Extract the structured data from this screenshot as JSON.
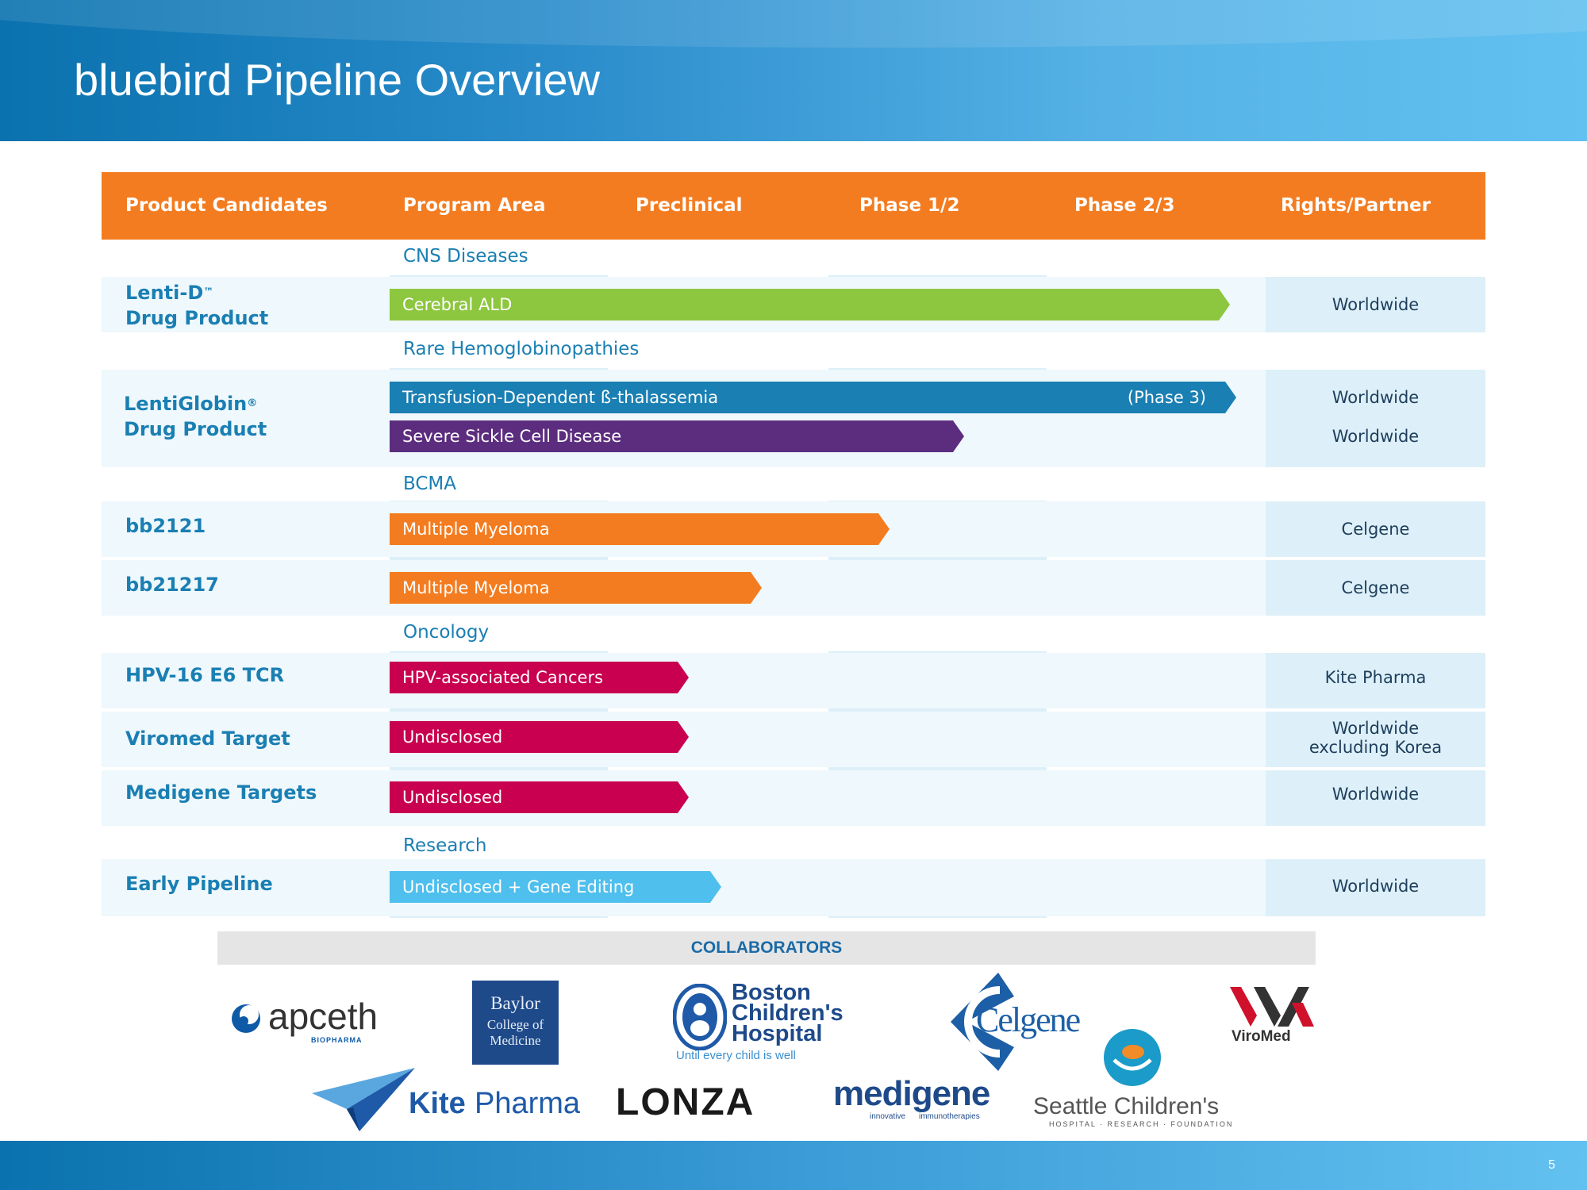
{
  "slide": {
    "title": "bluebird Pipeline Overview",
    "page_number": "5"
  },
  "table": {
    "headers": [
      "Product Candidates",
      "Program Area",
      "Preclinical",
      "Phase 1/2",
      "Phase 2/3",
      "Rights/Partner"
    ],
    "groups": [
      {
        "name": "CNS Diseases"
      },
      {
        "name": "Rare Hemoglobinopathies"
      },
      {
        "name": "BCMA"
      },
      {
        "name": "Oncology"
      },
      {
        "name": "Research"
      }
    ],
    "products": [
      {
        "name_line1": "Lenti-D",
        "name_mark": "™",
        "name_line2": "Drug Product",
        "programs": [
          {
            "program": "Cerebral ALD",
            "stage_end": 0.98,
            "color": "#8dc63f",
            "note": "",
            "rights": "Worldwide"
          }
        ]
      },
      {
        "name_line1": "LentiGlobin",
        "name_mark": "®",
        "name_line2": "Drug Product",
        "programs": [
          {
            "program": "Transfusion-Dependent ß-thalassemia",
            "stage_end": 1.0,
            "color": "#1a7fb3",
            "note": "(Phase 3)",
            "rights": "Worldwide"
          },
          {
            "program": "Severe Sickle Cell Disease",
            "stage_end": 0.65,
            "color": "#5c2d7e",
            "note": "",
            "rights": "Worldwide"
          }
        ]
      },
      {
        "name_line1": "bb2121",
        "programs": [
          {
            "program": "Multiple Myeloma",
            "stage_end": 0.57,
            "color": "#f47c20",
            "note": "",
            "rights": "Celgene"
          }
        ]
      },
      {
        "name_line1": "bb21217",
        "programs": [
          {
            "program": "Multiple Myeloma",
            "stage_end": 0.42,
            "color": "#f47c20",
            "note": "",
            "rights": "Celgene"
          }
        ]
      },
      {
        "name_line1": "HPV-16 E6 TCR",
        "programs": [
          {
            "program": "HPV-associated Cancers",
            "stage_end": 0.35,
            "color": "#c8004f",
            "note": "",
            "rights": "Kite Pharma"
          }
        ]
      },
      {
        "name_line1": "Viromed Target",
        "programs": [
          {
            "program": "Undisclosed",
            "stage_end": 0.35,
            "color": "#c8004f",
            "note": "",
            "rights_line1": "Worldwide",
            "rights_line2": "excluding Korea"
          }
        ]
      },
      {
        "name_line1": "Medigene Targets",
        "programs": [
          {
            "program": "Undisclosed",
            "stage_end": 0.35,
            "color": "#c8004f",
            "note": "",
            "rights": "Worldwide"
          }
        ]
      },
      {
        "name_line1": "Early Pipeline",
        "programs": [
          {
            "program": "Undisclosed + Gene Editing",
            "stage_end": 0.39,
            "color": "#4fbfed",
            "note": "",
            "rights": "Worldwide"
          }
        ]
      }
    ]
  },
  "collaborators": {
    "heading": "COLLABORATORS",
    "logos": {
      "apceth": {
        "name": "apceth",
        "sub": "BIOPHARMA"
      },
      "baylor": {
        "line1": "Baylor",
        "line2": "College of",
        "line3": "Medicine"
      },
      "boston": {
        "line1": "Boston",
        "line2": "Children's",
        "line3": "Hospital",
        "tagline": "Until every child is well"
      },
      "celgene": {
        "name": "Celgene"
      },
      "viromed": {
        "name": "ViroMed"
      },
      "kite": {
        "part1": "Kite",
        "part2": "Pharma"
      },
      "lonza": {
        "name": "LONZA"
      },
      "medigene": {
        "name": "medigene",
        "tag1": "innovative",
        "tag2": "immunotherapies"
      },
      "seattle": {
        "name": "Seattle Children's",
        "tagline": "HOSPITAL · RESEARCH · FOUNDATION"
      }
    }
  },
  "colors": {
    "orange": "#f47c20",
    "blue": "#1a7fb3",
    "green": "#8dc63f",
    "purple": "#5c2d7e",
    "magenta": "#c8004f",
    "light_blue": "#4fbfed"
  }
}
